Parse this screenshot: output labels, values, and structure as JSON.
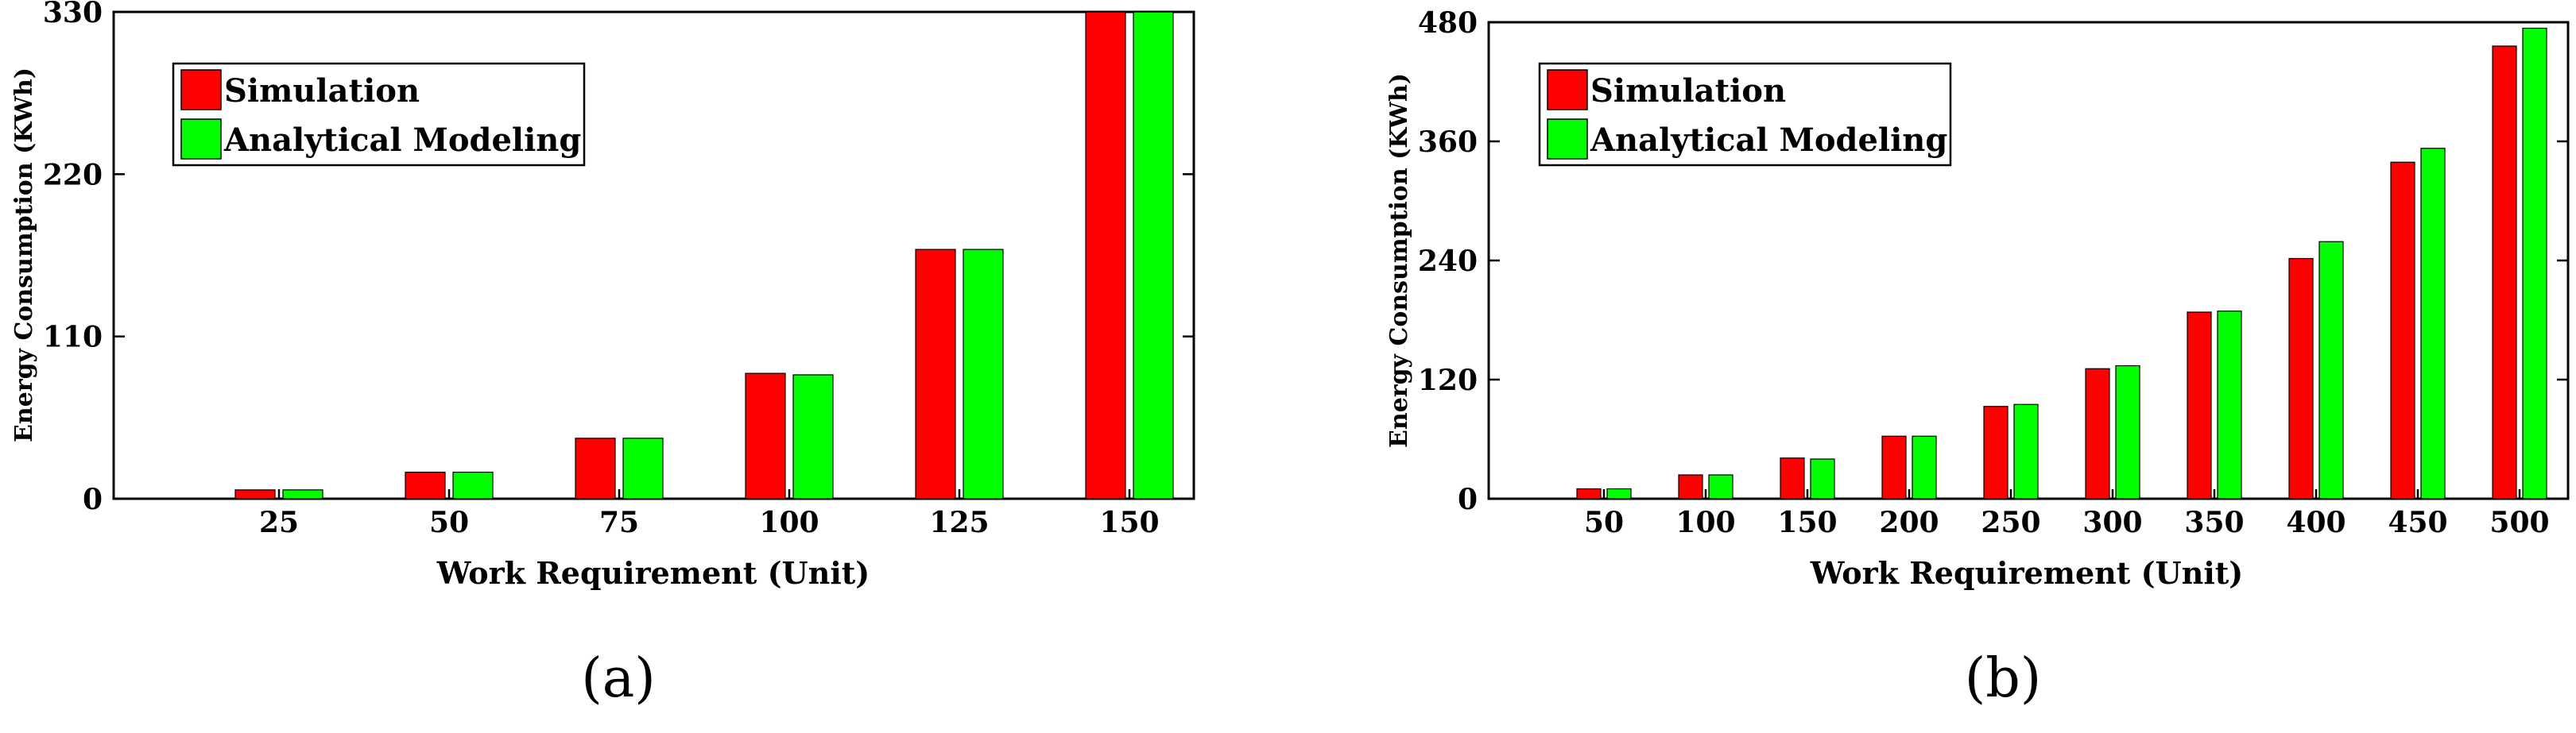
{
  "chart_data": [
    {
      "type": "bar",
      "caption": "(a)",
      "xlabel": "Work Requirement (Unit)",
      "ylabel": "Energy Consumption (KWh)",
      "ylim": [
        0,
        330
      ],
      "yticks": [
        0,
        110,
        220,
        330
      ],
      "categories": [
        "25",
        "50",
        "75",
        "100",
        "125",
        "150"
      ],
      "series": [
        {
          "name": "Simulation",
          "color": "#ff0000",
          "values": [
            6,
            18,
            41,
            85,
            169,
            330
          ]
        },
        {
          "name": "Analytical Modeling",
          "color": "#00ff00",
          "values": [
            6,
            18,
            41,
            84,
            169,
            330
          ]
        }
      ],
      "legend": "top-left",
      "grid": false
    },
    {
      "type": "bar",
      "caption": "(b)",
      "xlabel": "Work Requirement (Unit)",
      "ylabel": "Energy Consumption (KWh)",
      "ylim": [
        0,
        480
      ],
      "yticks": [
        0,
        120,
        240,
        360,
        480
      ],
      "categories": [
        "50",
        "100",
        "150",
        "200",
        "250",
        "300",
        "350",
        "400",
        "450",
        "500"
      ],
      "series": [
        {
          "name": "Simulation",
          "color": "#ff0000",
          "values": [
            10,
            24,
            41,
            63,
            93,
            131,
            188,
            242,
            339,
            456
          ]
        },
        {
          "name": "Analytical Modeling",
          "color": "#00ff00",
          "values": [
            10,
            24,
            40,
            63,
            95,
            134,
            189,
            259,
            353,
            474
          ]
        }
      ],
      "legend": "top-left",
      "grid": false
    }
  ]
}
